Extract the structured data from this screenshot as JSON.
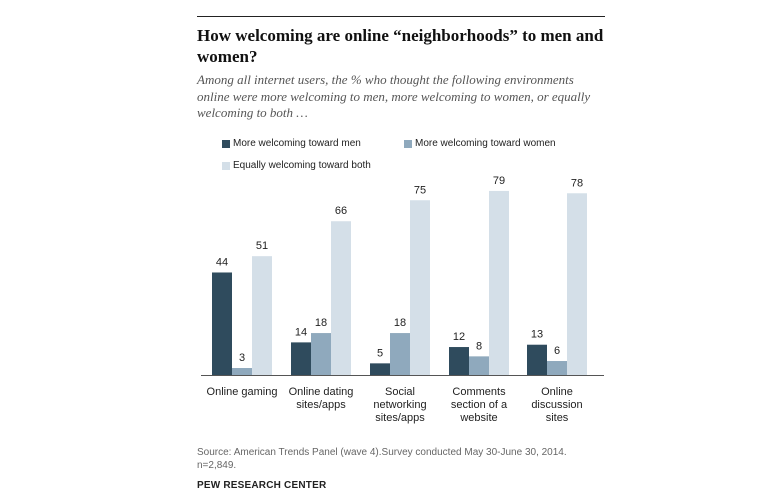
{
  "header": {
    "title": "How welcoming are online “neighborhoods”  to men and women?",
    "subtitle": "Among all internet users, the % who thought the following environments online were more welcoming to men, more welcoming to women, or equally welcoming to both …"
  },
  "footer": {
    "source": "Source: American Trends Panel (wave 4).Survey conducted May 30-June 30, 2014. n=2,849.",
    "brand": "PEW RESEARCH CENTER"
  },
  "colors": {
    "men": "#2f4b5d",
    "women": "#8fa9bd",
    "both": "#d4dfe8",
    "axis": "#555555"
  },
  "chart_data": {
    "type": "bar",
    "categories": [
      [
        "Online gaming"
      ],
      [
        "Online dating",
        "sites/apps"
      ],
      [
        "Social",
        "networking",
        "sites/apps"
      ],
      [
        "Comments",
        "section of a",
        "website"
      ],
      [
        "Online",
        "discussion",
        "sites"
      ]
    ],
    "series": [
      {
        "name": "More welcoming toward men",
        "values": [
          44,
          14,
          5,
          12,
          13
        ]
      },
      {
        "name": "More welcoming toward women",
        "values": [
          3,
          18,
          18,
          8,
          6
        ]
      },
      {
        "name": "Equally welcoming toward both",
        "values": [
          51,
          66,
          75,
          79,
          78
        ]
      }
    ],
    "ylim": [
      0,
      100
    ],
    "legend_position": "top-right",
    "grid": false,
    "title": "",
    "xlabel": "",
    "ylabel": ""
  }
}
